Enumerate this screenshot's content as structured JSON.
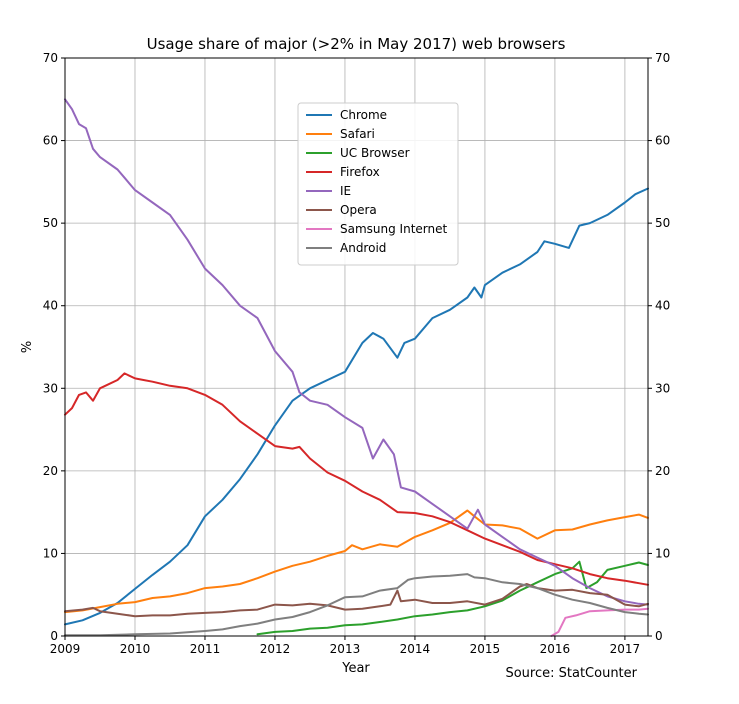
{
  "chart_data": {
    "type": "line",
    "title": "Usage share of major (>2% in May 2017) web browsers",
    "xlabel": "Year",
    "ylabel": "%",
    "source": "Source: StatCounter",
    "xlim": [
      2009,
      2017.33
    ],
    "ylim": [
      0,
      70
    ],
    "x_ticks": [
      2009,
      2010,
      2011,
      2012,
      2013,
      2014,
      2015,
      2016,
      2017
    ],
    "x_tick_labels": [
      "2009",
      "2010",
      "2011",
      "2012",
      "2013",
      "2014",
      "2015",
      "2016",
      "2017"
    ],
    "y_ticks": [
      0,
      10,
      20,
      30,
      40,
      50,
      60,
      70
    ],
    "y_tick_labels": [
      "0",
      "10",
      "20",
      "30",
      "40",
      "50",
      "60",
      "70"
    ],
    "grid": true,
    "legend_position": "upper-center",
    "series": [
      {
        "name": "Chrome",
        "color": "#1f77b4",
        "points": [
          [
            2009.0,
            1.4
          ],
          [
            2009.25,
            1.9
          ],
          [
            2009.5,
            2.8
          ],
          [
            2009.75,
            4.0
          ],
          [
            2010.0,
            5.7
          ],
          [
            2010.25,
            7.4
          ],
          [
            2010.5,
            9.0
          ],
          [
            2010.75,
            11.0
          ],
          [
            2011.0,
            14.5
          ],
          [
            2011.25,
            16.5
          ],
          [
            2011.5,
            19.0
          ],
          [
            2011.75,
            22.0
          ],
          [
            2012.0,
            25.5
          ],
          [
            2012.25,
            28.5
          ],
          [
            2012.5,
            30.0
          ],
          [
            2012.75,
            31.0
          ],
          [
            2013.0,
            32.0
          ],
          [
            2013.25,
            35.5
          ],
          [
            2013.4,
            36.7
          ],
          [
            2013.55,
            36.0
          ],
          [
            2013.75,
            33.7
          ],
          [
            2013.85,
            35.5
          ],
          [
            2014.0,
            36.0
          ],
          [
            2014.25,
            38.5
          ],
          [
            2014.5,
            39.5
          ],
          [
            2014.75,
            41.0
          ],
          [
            2014.85,
            42.2
          ],
          [
            2014.95,
            41.0
          ],
          [
            2015.0,
            42.5
          ],
          [
            2015.25,
            44.0
          ],
          [
            2015.5,
            45.0
          ],
          [
            2015.75,
            46.5
          ],
          [
            2015.85,
            47.8
          ],
          [
            2016.0,
            47.5
          ],
          [
            2016.2,
            47.0
          ],
          [
            2016.35,
            49.7
          ],
          [
            2016.5,
            50.0
          ],
          [
            2016.75,
            51.0
          ],
          [
            2017.0,
            52.5
          ],
          [
            2017.15,
            53.5
          ],
          [
            2017.33,
            54.2
          ]
        ]
      },
      {
        "name": "Safari",
        "color": "#ff7f0e",
        "points": [
          [
            2009.0,
            2.9
          ],
          [
            2009.25,
            3.1
          ],
          [
            2009.5,
            3.5
          ],
          [
            2009.75,
            3.9
          ],
          [
            2010.0,
            4.1
          ],
          [
            2010.25,
            4.6
          ],
          [
            2010.5,
            4.8
          ],
          [
            2010.75,
            5.2
          ],
          [
            2011.0,
            5.8
          ],
          [
            2011.25,
            6.0
          ],
          [
            2011.5,
            6.3
          ],
          [
            2011.75,
            7.0
          ],
          [
            2012.0,
            7.8
          ],
          [
            2012.25,
            8.5
          ],
          [
            2012.5,
            9.0
          ],
          [
            2012.75,
            9.7
          ],
          [
            2013.0,
            10.3
          ],
          [
            2013.1,
            11.0
          ],
          [
            2013.25,
            10.5
          ],
          [
            2013.5,
            11.1
          ],
          [
            2013.75,
            10.8
          ],
          [
            2014.0,
            12.0
          ],
          [
            2014.25,
            12.8
          ],
          [
            2014.5,
            13.7
          ],
          [
            2014.75,
            15.2
          ],
          [
            2014.85,
            14.5
          ],
          [
            2015.0,
            13.5
          ],
          [
            2015.25,
            13.4
          ],
          [
            2015.5,
            13.0
          ],
          [
            2015.75,
            11.8
          ],
          [
            2016.0,
            12.8
          ],
          [
            2016.25,
            12.9
          ],
          [
            2016.5,
            13.5
          ],
          [
            2016.75,
            14.0
          ],
          [
            2017.0,
            14.4
          ],
          [
            2017.2,
            14.7
          ],
          [
            2017.33,
            14.3
          ]
        ]
      },
      {
        "name": "UC Browser",
        "color": "#2ca02c",
        "points": [
          [
            2011.75,
            0.2
          ],
          [
            2012.0,
            0.5
          ],
          [
            2012.25,
            0.6
          ],
          [
            2012.5,
            0.9
          ],
          [
            2012.75,
            1.0
          ],
          [
            2013.0,
            1.3
          ],
          [
            2013.25,
            1.4
          ],
          [
            2013.5,
            1.7
          ],
          [
            2013.75,
            2.0
          ],
          [
            2014.0,
            2.4
          ],
          [
            2014.25,
            2.6
          ],
          [
            2014.5,
            2.9
          ],
          [
            2014.75,
            3.1
          ],
          [
            2015.0,
            3.6
          ],
          [
            2015.25,
            4.3
          ],
          [
            2015.5,
            5.5
          ],
          [
            2015.75,
            6.5
          ],
          [
            2016.0,
            7.5
          ],
          [
            2016.25,
            8.2
          ],
          [
            2016.35,
            9.0
          ],
          [
            2016.45,
            5.8
          ],
          [
            2016.6,
            6.5
          ],
          [
            2016.75,
            8.0
          ],
          [
            2017.0,
            8.5
          ],
          [
            2017.2,
            8.9
          ],
          [
            2017.33,
            8.6
          ]
        ]
      },
      {
        "name": "Firefox",
        "color": "#d62728",
        "points": [
          [
            2009.0,
            26.8
          ],
          [
            2009.1,
            27.6
          ],
          [
            2009.2,
            29.2
          ],
          [
            2009.3,
            29.5
          ],
          [
            2009.4,
            28.5
          ],
          [
            2009.5,
            30.0
          ],
          [
            2009.75,
            31.0
          ],
          [
            2009.85,
            31.8
          ],
          [
            2010.0,
            31.2
          ],
          [
            2010.25,
            30.8
          ],
          [
            2010.5,
            30.3
          ],
          [
            2010.75,
            30.0
          ],
          [
            2011.0,
            29.2
          ],
          [
            2011.25,
            28.0
          ],
          [
            2011.5,
            26.0
          ],
          [
            2011.75,
            24.5
          ],
          [
            2012.0,
            23.0
          ],
          [
            2012.25,
            22.7
          ],
          [
            2012.35,
            22.9
          ],
          [
            2012.5,
            21.5
          ],
          [
            2012.75,
            19.8
          ],
          [
            2013.0,
            18.8
          ],
          [
            2013.25,
            17.5
          ],
          [
            2013.5,
            16.5
          ],
          [
            2013.75,
            15.0
          ],
          [
            2014.0,
            14.9
          ],
          [
            2014.25,
            14.5
          ],
          [
            2014.5,
            13.8
          ],
          [
            2014.75,
            12.8
          ],
          [
            2015.0,
            11.8
          ],
          [
            2015.25,
            11.0
          ],
          [
            2015.5,
            10.2
          ],
          [
            2015.75,
            9.2
          ],
          [
            2016.0,
            8.7
          ],
          [
            2016.25,
            8.2
          ],
          [
            2016.5,
            7.5
          ],
          [
            2016.75,
            7.0
          ],
          [
            2017.0,
            6.7
          ],
          [
            2017.2,
            6.4
          ],
          [
            2017.33,
            6.2
          ]
        ]
      },
      {
        "name": "IE",
        "color": "#9467bd",
        "points": [
          [
            2009.0,
            65.0
          ],
          [
            2009.1,
            63.8
          ],
          [
            2009.2,
            62.0
          ],
          [
            2009.3,
            61.5
          ],
          [
            2009.4,
            59.0
          ],
          [
            2009.5,
            58.0
          ],
          [
            2009.75,
            56.5
          ],
          [
            2009.85,
            55.5
          ],
          [
            2010.0,
            54.0
          ],
          [
            2010.25,
            52.5
          ],
          [
            2010.5,
            51.0
          ],
          [
            2010.75,
            48.0
          ],
          [
            2011.0,
            44.5
          ],
          [
            2011.25,
            42.5
          ],
          [
            2011.5,
            40.0
          ],
          [
            2011.75,
            38.5
          ],
          [
            2012.0,
            34.5
          ],
          [
            2012.25,
            32.0
          ],
          [
            2012.35,
            29.5
          ],
          [
            2012.5,
            28.5
          ],
          [
            2012.75,
            28.0
          ],
          [
            2013.0,
            26.5
          ],
          [
            2013.25,
            25.2
          ],
          [
            2013.4,
            21.5
          ],
          [
            2013.55,
            23.8
          ],
          [
            2013.7,
            22.0
          ],
          [
            2013.8,
            18.0
          ],
          [
            2014.0,
            17.5
          ],
          [
            2014.25,
            16.0
          ],
          [
            2014.5,
            14.5
          ],
          [
            2014.75,
            13.0
          ],
          [
            2014.9,
            15.3
          ],
          [
            2015.0,
            13.5
          ],
          [
            2015.25,
            12.0
          ],
          [
            2015.5,
            10.5
          ],
          [
            2015.75,
            9.5
          ],
          [
            2016.0,
            8.5
          ],
          [
            2016.25,
            7.0
          ],
          [
            2016.5,
            5.8
          ],
          [
            2016.75,
            4.8
          ],
          [
            2017.0,
            4.2
          ],
          [
            2017.2,
            3.9
          ],
          [
            2017.33,
            3.8
          ]
        ]
      },
      {
        "name": "Opera",
        "color": "#8c564b",
        "points": [
          [
            2009.0,
            3.0
          ],
          [
            2009.25,
            3.2
          ],
          [
            2009.4,
            3.4
          ],
          [
            2009.5,
            3.0
          ],
          [
            2009.75,
            2.7
          ],
          [
            2010.0,
            2.4
          ],
          [
            2010.25,
            2.5
          ],
          [
            2010.5,
            2.5
          ],
          [
            2010.75,
            2.7
          ],
          [
            2011.0,
            2.8
          ],
          [
            2011.25,
            2.9
          ],
          [
            2011.5,
            3.1
          ],
          [
            2011.75,
            3.2
          ],
          [
            2012.0,
            3.8
          ],
          [
            2012.25,
            3.7
          ],
          [
            2012.5,
            3.9
          ],
          [
            2012.75,
            3.7
          ],
          [
            2013.0,
            3.2
          ],
          [
            2013.25,
            3.3
          ],
          [
            2013.5,
            3.6
          ],
          [
            2013.65,
            3.8
          ],
          [
            2013.75,
            5.5
          ],
          [
            2013.8,
            4.2
          ],
          [
            2014.0,
            4.4
          ],
          [
            2014.25,
            4.0
          ],
          [
            2014.5,
            4.0
          ],
          [
            2014.75,
            4.2
          ],
          [
            2015.0,
            3.8
          ],
          [
            2015.25,
            4.5
          ],
          [
            2015.5,
            6.0
          ],
          [
            2015.6,
            6.3
          ],
          [
            2015.75,
            5.8
          ],
          [
            2016.0,
            5.5
          ],
          [
            2016.25,
            5.6
          ],
          [
            2016.5,
            5.2
          ],
          [
            2016.75,
            5.0
          ],
          [
            2017.0,
            3.8
          ],
          [
            2017.2,
            3.6
          ],
          [
            2017.33,
            3.9
          ]
        ]
      },
      {
        "name": "Samsung Internet",
        "color": "#e377c2",
        "points": [
          [
            2015.95,
            0.0
          ],
          [
            2016.05,
            0.5
          ],
          [
            2016.15,
            2.2
          ],
          [
            2016.3,
            2.5
          ],
          [
            2016.5,
            3.0
          ],
          [
            2016.75,
            3.1
          ],
          [
            2017.0,
            3.2
          ],
          [
            2017.2,
            3.2
          ],
          [
            2017.33,
            3.3
          ]
        ]
      },
      {
        "name": "Android",
        "color": "#7f7f7f",
        "points": [
          [
            2009.0,
            0.1
          ],
          [
            2009.5,
            0.1
          ],
          [
            2010.0,
            0.2
          ],
          [
            2010.5,
            0.3
          ],
          [
            2011.0,
            0.6
          ],
          [
            2011.25,
            0.8
          ],
          [
            2011.5,
            1.2
          ],
          [
            2011.75,
            1.5
          ],
          [
            2012.0,
            2.0
          ],
          [
            2012.25,
            2.3
          ],
          [
            2012.5,
            2.9
          ],
          [
            2012.75,
            3.7
          ],
          [
            2013.0,
            4.7
          ],
          [
            2013.25,
            4.8
          ],
          [
            2013.5,
            5.5
          ],
          [
            2013.75,
            5.8
          ],
          [
            2013.9,
            6.8
          ],
          [
            2014.0,
            7.0
          ],
          [
            2014.25,
            7.2
          ],
          [
            2014.5,
            7.3
          ],
          [
            2014.75,
            7.5
          ],
          [
            2014.85,
            7.1
          ],
          [
            2015.0,
            7.0
          ],
          [
            2015.25,
            6.5
          ],
          [
            2015.5,
            6.3
          ],
          [
            2015.75,
            5.8
          ],
          [
            2016.0,
            5.0
          ],
          [
            2016.25,
            4.4
          ],
          [
            2016.5,
            4.0
          ],
          [
            2016.75,
            3.4
          ],
          [
            2017.0,
            2.9
          ],
          [
            2017.2,
            2.7
          ],
          [
            2017.33,
            2.6
          ]
        ]
      }
    ]
  }
}
